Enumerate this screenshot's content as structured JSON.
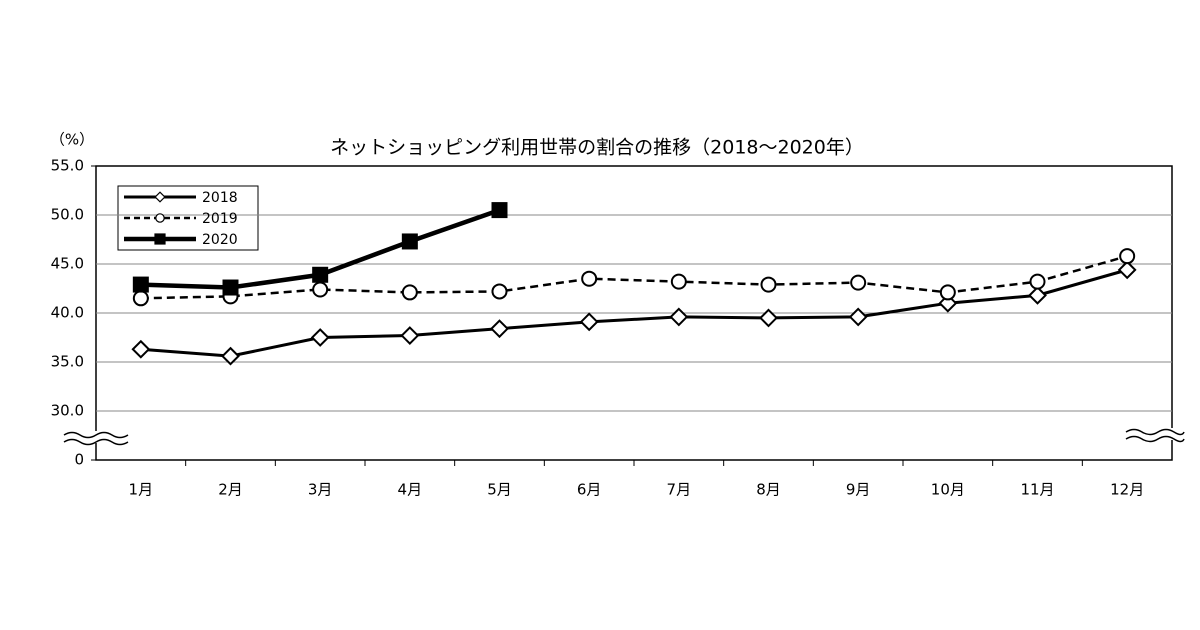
{
  "chart_data": {
    "type": "line",
    "title": "ネットショッピング利用世帯の割合の推移（2018～2020年）",
    "y_label": "（%）",
    "categories": [
      "1月",
      "2月",
      "3月",
      "4月",
      "5月",
      "6月",
      "7月",
      "8月",
      "9月",
      "10月",
      "11月",
      "12月"
    ],
    "series": [
      {
        "name": "2018",
        "color": "#000000",
        "dash": false,
        "marker": "diamond",
        "width": 3,
        "values": [
          36.3,
          35.6,
          37.5,
          37.7,
          38.4,
          39.1,
          39.6,
          39.5,
          39.6,
          41.0,
          41.8,
          44.4
        ]
      },
      {
        "name": "2019",
        "color": "#000000",
        "dash": true,
        "marker": "circle",
        "width": 2.5,
        "values": [
          41.5,
          41.7,
          42.4,
          42.1,
          42.2,
          43.5,
          43.2,
          42.9,
          43.1,
          42.1,
          43.2,
          45.8
        ]
      },
      {
        "name": "2020",
        "color": "#000000",
        "dash": false,
        "marker": "square",
        "width": 4.5,
        "values": [
          42.9,
          42.6,
          43.9,
          47.3,
          50.5,
          null,
          null,
          null,
          null,
          null,
          null,
          null
        ]
      }
    ],
    "ylim": [
      0,
      55
    ],
    "ybreak": [
      0,
      30
    ],
    "yticks": [
      {
        "value": 0,
        "label": "0"
      },
      {
        "value": 30,
        "label": "30.0"
      },
      {
        "value": 35,
        "label": "35.0"
      },
      {
        "value": 40,
        "label": "40.0"
      },
      {
        "value": 45,
        "label": "45.0"
      },
      {
        "value": 50,
        "label": "50.0"
      },
      {
        "value": 55,
        "label": "55.0"
      }
    ],
    "grid": true,
    "legend": "upper left"
  }
}
